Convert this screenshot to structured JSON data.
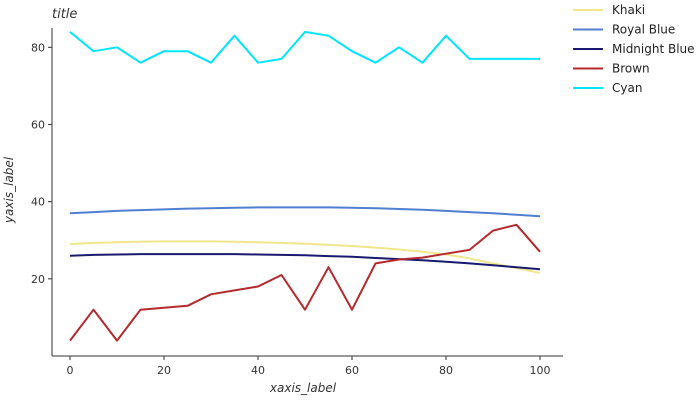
{
  "chart_data": {
    "type": "line",
    "title": "title",
    "xlabel": "xaxis_label",
    "ylabel": "yaxis_label",
    "xlim": [
      0,
      100
    ],
    "ylim": [
      0,
      85
    ],
    "xticks": [
      0,
      20,
      40,
      60,
      80,
      100
    ],
    "yticks": [
      20,
      40,
      60,
      80
    ],
    "grid": false,
    "legend_position": "right",
    "x": [
      0,
      5,
      10,
      15,
      20,
      25,
      30,
      35,
      40,
      45,
      50,
      55,
      60,
      65,
      70,
      75,
      80,
      85,
      90,
      95,
      100
    ],
    "series": [
      {
        "name": "Khaki",
        "color": "#f0e68c",
        "values": [
          29.0,
          29.3,
          29.5,
          29.6,
          29.7,
          29.7,
          29.7,
          29.6,
          29.5,
          29.3,
          29.1,
          28.8,
          28.5,
          28.1,
          27.6,
          27.0,
          26.3,
          25.3,
          24.0,
          22.8,
          21.5
        ]
      },
      {
        "name": "Royal Blue",
        "color": "#4f7fd0",
        "values": [
          37.0,
          37.3,
          37.6,
          37.8,
          38.0,
          38.2,
          38.3,
          38.4,
          38.5,
          38.5,
          38.5,
          38.5,
          38.4,
          38.3,
          38.1,
          37.9,
          37.6,
          37.3,
          37.0,
          36.6,
          36.2
        ]
      },
      {
        "name": "Midnight Blue",
        "color": "#191970",
        "values": [
          26.0,
          26.2,
          26.3,
          26.4,
          26.4,
          26.4,
          26.4,
          26.4,
          26.3,
          26.2,
          26.1,
          25.9,
          25.7,
          25.4,
          25.1,
          24.8,
          24.4,
          24.0,
          23.5,
          23.0,
          22.5
        ]
      },
      {
        "name": "Brown",
        "color": "#b5282c",
        "values": [
          4.0,
          12.0,
          4.0,
          12.0,
          12.5,
          13.0,
          16.0,
          17.0,
          18.0,
          21.0,
          12.0,
          23.0,
          12.0,
          24.0,
          25.0,
          25.5,
          26.5,
          27.5,
          32.5,
          34.0,
          27.0
        ]
      },
      {
        "name": "Cyan",
        "color": "#00e5ff",
        "values": [
          84.0,
          79.0,
          80.0,
          76.0,
          79.0,
          79.0,
          76.0,
          83.0,
          76.0,
          77.0,
          84.0,
          83.0,
          79.0,
          76.0,
          80.0,
          76.0,
          83.0,
          77.0,
          77.0,
          77.0,
          77.0
        ]
      }
    ]
  }
}
